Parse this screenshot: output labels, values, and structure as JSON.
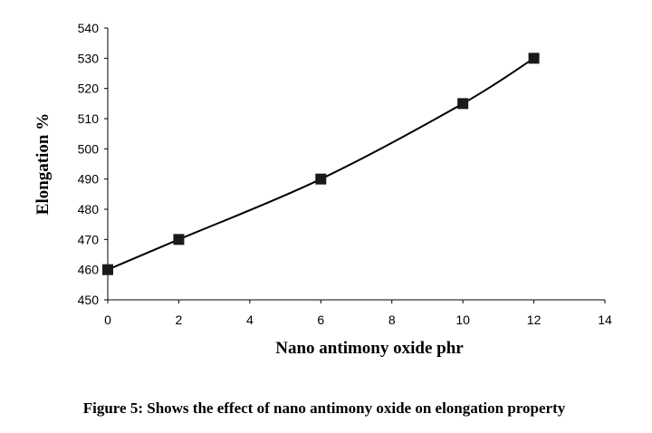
{
  "chart_data": {
    "type": "line",
    "xlabel": "Nano antimony oxide phr",
    "ylabel": "Elongation %",
    "caption": "Figure 5: Shows the effect of nano antimony oxide on elongation property",
    "xlim": [
      0,
      14
    ],
    "ylim": [
      450,
      540
    ],
    "x_ticks": [
      "0",
      "2",
      "4",
      "6",
      "8",
      "10",
      "12",
      "14"
    ],
    "y_ticks": [
      "450",
      "460",
      "470",
      "480",
      "490",
      "500",
      "510",
      "520",
      "530",
      "540"
    ],
    "grid": false,
    "marker": "square",
    "line_style": "smoothed",
    "line_color": "#000000",
    "marker_color": "#1a1a1a",
    "series": [
      {
        "x": [
          0,
          2,
          6,
          10,
          12
        ],
        "y": [
          460,
          470,
          490,
          515,
          530
        ]
      }
    ]
  }
}
